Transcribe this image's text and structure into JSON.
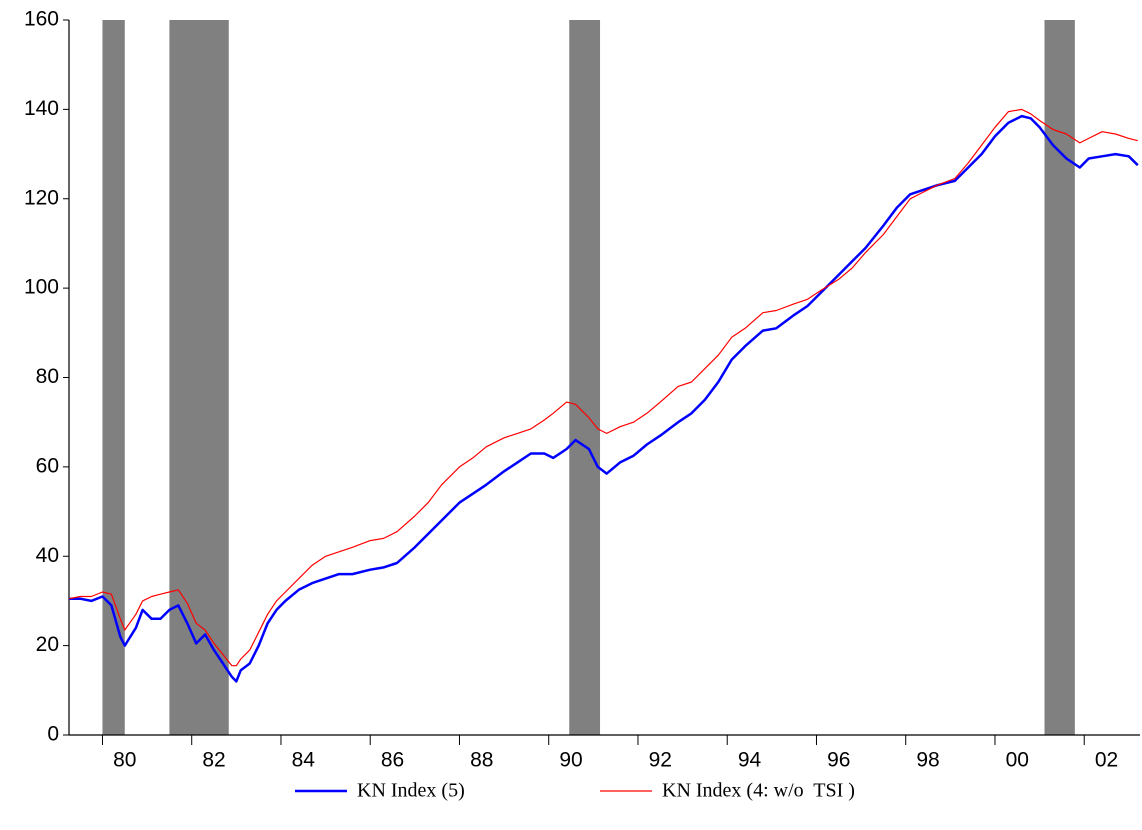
{
  "chart_data": {
    "type": "line",
    "x": [
      1979.25,
      1979.5,
      1979.75,
      1980.0,
      1980.2,
      1980.4,
      1980.5,
      1980.75,
      1980.9,
      1981.1,
      1981.3,
      1981.5,
      1981.7,
      1981.9,
      1982.1,
      1982.3,
      1982.5,
      1982.7,
      1982.9,
      1983.0,
      1983.1,
      1983.3,
      1983.5,
      1983.7,
      1983.9,
      1984.1,
      1984.4,
      1984.7,
      1985.0,
      1985.3,
      1985.6,
      1986.0,
      1986.3,
      1986.6,
      1987.0,
      1987.3,
      1987.6,
      1988.0,
      1988.3,
      1988.6,
      1989.0,
      1989.3,
      1989.6,
      1989.9,
      1990.1,
      1990.4,
      1990.6,
      1990.9,
      1991.1,
      1991.3,
      1991.6,
      1991.9,
      1992.2,
      1992.5,
      1992.9,
      1993.2,
      1993.5,
      1993.8,
      1994.1,
      1994.4,
      1994.8,
      1995.1,
      1995.5,
      1995.8,
      1996.1,
      1996.5,
      1996.8,
      1997.1,
      1997.5,
      1997.8,
      1998.1,
      1998.4,
      1998.7,
      1999.1,
      1999.4,
      1999.7,
      2000.0,
      2000.3,
      2000.6,
      2000.8,
      2001.0,
      2001.3,
      2001.6,
      2001.9,
      2002.1,
      2002.4,
      2002.7,
      2003.0,
      2003.2
    ],
    "series": [
      {
        "name": "KN Index (5)",
        "color": "#0000ff",
        "width": 2.5,
        "values": [
          30.5,
          30.5,
          30,
          31,
          29,
          22,
          20,
          24,
          28,
          26,
          26,
          28,
          29,
          25,
          20.5,
          22.5,
          19,
          16,
          13,
          12,
          14.5,
          16,
          20,
          25,
          28,
          30,
          32.5,
          34,
          35,
          36,
          36,
          37,
          37.5,
          38.5,
          42,
          45,
          48,
          52,
          54,
          56,
          59,
          61,
          63,
          63,
          62,
          64,
          66,
          64,
          60,
          58.5,
          61,
          62.5,
          65,
          67,
          70,
          72,
          75,
          79,
          84,
          87,
          90.5,
          91,
          94,
          96,
          99,
          103,
          106,
          109,
          114,
          118,
          121,
          122,
          123,
          124,
          127,
          130,
          134,
          137,
          138.5,
          138,
          136,
          132,
          129,
          127,
          129,
          129.5,
          130,
          129.5,
          127.5
        ]
      },
      {
        "name": "KN Index (4: w/o  TSI )",
        "color": "#ff0000",
        "width": 1.2,
        "values": [
          30.5,
          31,
          31,
          32,
          31.5,
          26,
          23.5,
          27,
          30,
          31,
          31.5,
          32,
          32.5,
          29.5,
          25,
          23.5,
          20.5,
          18,
          15.5,
          15.5,
          17,
          19,
          23,
          27,
          30,
          32,
          35,
          38,
          40,
          41,
          42,
          43.5,
          44,
          45.5,
          49,
          52,
          56,
          60,
          62,
          64.5,
          66.5,
          67.5,
          68.5,
          70.5,
          72,
          74.5,
          74,
          71,
          68.5,
          67.5,
          69,
          70,
          72,
          74.5,
          78,
          79,
          82,
          85,
          89,
          91,
          94.5,
          95,
          96.5,
          97.5,
          99.5,
          102,
          104.5,
          108,
          112,
          116,
          120,
          121.5,
          123,
          124.5,
          128,
          132,
          136,
          139.5,
          140,
          139,
          137.5,
          135.5,
          134.5,
          132.5,
          133.5,
          135,
          134.5,
          133.5,
          133
        ]
      }
    ],
    "shaded_periods": [
      [
        1980.0,
        1980.5
      ],
      [
        1981.5,
        1982.83
      ],
      [
        1990.46,
        1991.15
      ],
      [
        2001.11,
        2001.79
      ]
    ],
    "shade_color": "#808080",
    "xlim": [
      1979.25,
      2003.25
    ],
    "xticks": [
      {
        "value": 1980,
        "label": "80"
      },
      {
        "value": 1982,
        "label": "82"
      },
      {
        "value": 1984,
        "label": "84"
      },
      {
        "value": 1986,
        "label": "86"
      },
      {
        "value": 1988,
        "label": "88"
      },
      {
        "value": 1990,
        "label": "90"
      },
      {
        "value": 1992,
        "label": "92"
      },
      {
        "value": 1994,
        "label": "94"
      },
      {
        "value": 1996,
        "label": "96"
      },
      {
        "value": 1998,
        "label": "98"
      },
      {
        "value": 2000,
        "label": "00"
      },
      {
        "value": 2002,
        "label": "02"
      }
    ],
    "ylim": [
      0,
      160
    ],
    "yticks": [
      0,
      20,
      40,
      60,
      80,
      100,
      120,
      140,
      160
    ],
    "grid": false,
    "legend": "bottom"
  }
}
